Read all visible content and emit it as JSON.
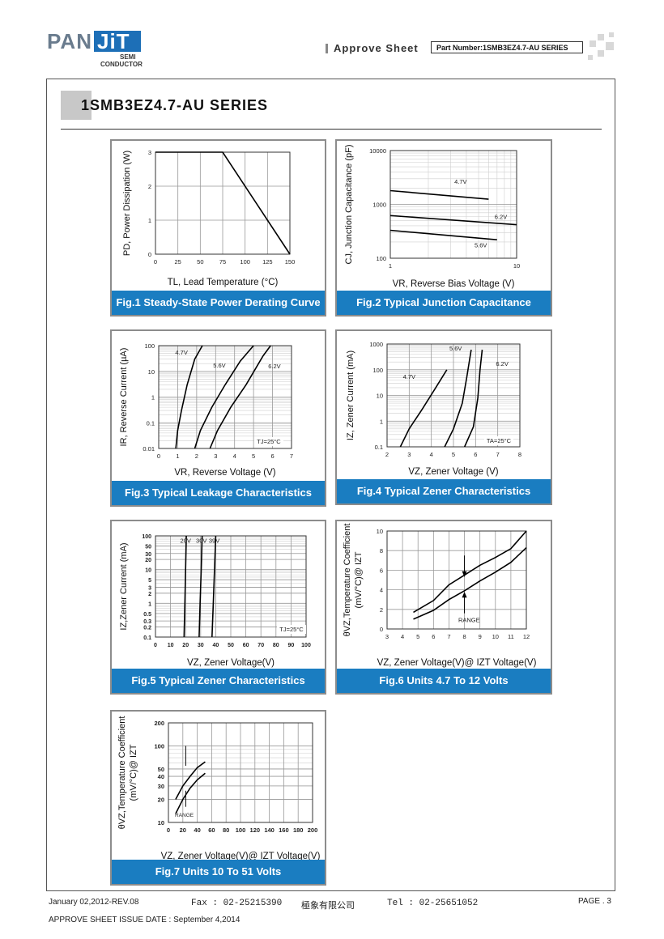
{
  "header": {
    "logo_pan": "PAN",
    "logo_jit": "JiT",
    "logo_semi": "SEMI",
    "logo_conductor": "CONDUCTOR",
    "approve_label": "Approve Sheet",
    "part_number": "Part Number:1SMB3EZ4.7-AU SERIES"
  },
  "page_title": "1SMB3EZ4.7-AU SERIES",
  "colors": {
    "caption_bg": "#1a7dc1",
    "accent": "#1d6fb7"
  },
  "figures": {
    "fig1": {
      "caption": "Fig.1 Steady-State Power Derating Curve",
      "ylabel": "PD, Power Dissipation (W)",
      "xlabel": "TL, Lead Temperature  (°C)"
    },
    "fig2": {
      "caption": "Fig.2 Typical Junction Capacitance",
      "ylabel": "CJ, Junction Capacitance (pF)",
      "xlabel": "VR, Reverse Bias Voltage (V)"
    },
    "fig3": {
      "caption": "Fig.3 Typical Leakage Characteristics",
      "ylabel": "IR, Reverse Current (µA)",
      "xlabel": "VR, Reverse Voltage (V)",
      "note": "TJ=25°C"
    },
    "fig4": {
      "caption": "Fig.4 Typical Zener Characteristics",
      "ylabel": "IZ, Zener Current (mA)",
      "xlabel": "VZ, Zener Voltage (V)",
      "note": "TA=25°C"
    },
    "fig5": {
      "caption": "Fig.5 Typical Zener Characteristics",
      "ylabel": "IZ,Zener Current (mA)",
      "xlabel": "VZ, Zener Voltage(V)",
      "note": "TJ=25°C"
    },
    "fig6": {
      "caption": "Fig.6 Units 4.7 To 12 Volts",
      "ylabel1": "θVZ,Temperature Coefficient",
      "ylabel2": "(mV/°C)@ IZT",
      "xlabel": "VZ, Zener Voltage(V)@ IZT Voltage(V)",
      "note": "RANGE"
    },
    "fig7": {
      "caption": "Fig.7 Units 10 To 51 Volts",
      "ylabel1": "θVZ,Temperature Coefficient",
      "ylabel2": "(mV/°C)@ IZT",
      "xlabel": "VZ, Zener Voltage(V)@ IZT Voltage(V)",
      "note": "RANGE"
    }
  },
  "chart_data": [
    {
      "id": "fig1",
      "type": "line",
      "xlabel": "TL, Lead Temperature (°C)",
      "ylabel": "PD, Power Dissipation (W)",
      "xlim": [
        0,
        150
      ],
      "ylim": [
        0,
        3
      ],
      "x_ticks": [
        "0",
        "25",
        "50",
        "75",
        "100",
        "125",
        "150"
      ],
      "y_ticks": [
        "0",
        "1",
        "2",
        "3"
      ],
      "series": [
        {
          "x": [
            0,
            75,
            150
          ],
          "y": [
            3,
            3,
            0
          ]
        }
      ]
    },
    {
      "id": "fig2",
      "type": "line",
      "log_x": true,
      "log_y": true,
      "xlabel": "VR, Reverse Bias Voltage (V)",
      "ylabel": "CJ, Junction Capacitance (pF)",
      "xlim": [
        1,
        10
      ],
      "ylim": [
        100,
        10000
      ],
      "x_ticks": [
        "1",
        "10"
      ],
      "y_ticks": [
        "100",
        "1000",
        "10000"
      ],
      "series": [
        {
          "name": "4.7V",
          "x": [
            1,
            6
          ],
          "y": [
            1800,
            1250
          ]
        },
        {
          "name": "6.2V",
          "x": [
            1,
            10
          ],
          "y": [
            620,
            420
          ]
        },
        {
          "name": "5.6V",
          "x": [
            1,
            7
          ],
          "y": [
            330,
            220
          ]
        }
      ]
    },
    {
      "id": "fig3",
      "type": "line",
      "log_y": true,
      "xlabel": "VR, Reverse Voltage (V)",
      "ylabel": "IR, Reverse Current (µA)",
      "xlim": [
        0,
        7
      ],
      "ylim": [
        0.01,
        100
      ],
      "x_ticks": [
        "0",
        "1",
        "2",
        "3",
        "4",
        "5",
        "6",
        "7"
      ],
      "y_ticks": [
        "0.01",
        "0.1",
        "1",
        "10",
        "100"
      ],
      "series": [
        {
          "name": "4.7V",
          "x": [
            0.9,
            1.0,
            1.2,
            1.5,
            1.9,
            2.3
          ],
          "y": [
            0.01,
            0.05,
            0.3,
            3,
            30,
            100
          ]
        },
        {
          "name": "5.6V",
          "x": [
            1.9,
            2.2,
            2.8,
            3.5,
            4.3,
            5.0
          ],
          "y": [
            0.01,
            0.05,
            0.4,
            3,
            25,
            100
          ]
        },
        {
          "name": "6.2V",
          "x": [
            2.7,
            3.1,
            3.8,
            4.6,
            5.5,
            5.9
          ],
          "y": [
            0.01,
            0.05,
            0.4,
            3,
            40,
            100
          ]
        }
      ]
    },
    {
      "id": "fig4",
      "type": "line",
      "log_y": true,
      "xlabel": "VZ, Zener Voltage (V)",
      "ylabel": "IZ, Zener Current (mA)",
      "xlim": [
        2,
        8
      ],
      "ylim": [
        0.1,
        1000
      ],
      "x_ticks": [
        "2",
        "3",
        "4",
        "5",
        "6",
        "7",
        "8"
      ],
      "y_ticks": [
        "0.1",
        "1",
        "10",
        "100",
        "1000"
      ],
      "series": [
        {
          "name": "4.7V",
          "x": [
            2.6,
            3.0,
            3.6,
            4.2,
            4.7
          ],
          "y": [
            0.1,
            0.5,
            3,
            20,
            100
          ]
        },
        {
          "name": "5.6V",
          "x": [
            4.6,
            5.0,
            5.4,
            5.6,
            5.8
          ],
          "y": [
            0.1,
            0.5,
            5,
            50,
            600
          ]
        },
        {
          "name": "6.2V",
          "x": [
            5.5,
            5.9,
            6.1,
            6.2,
            6.3
          ],
          "y": [
            0.1,
            0.6,
            8,
            100,
            600
          ]
        }
      ]
    },
    {
      "id": "fig5",
      "type": "line",
      "log_y": true,
      "xlabel": "VZ, Zener Voltage(V)",
      "ylabel": "IZ,Zener Current (mA)",
      "xlim": [
        0,
        100
      ],
      "ylim": [
        0.1,
        100
      ],
      "x_ticks": [
        "0",
        "10",
        "20",
        "30",
        "40",
        "50",
        "60",
        "70",
        "80",
        "90",
        "100"
      ],
      "y_ticks": [
        "0.1",
        "0.2",
        "0.3",
        "0.5",
        "1",
        "2",
        "3",
        "5",
        "10",
        "20",
        "30",
        "50",
        "100"
      ],
      "series": [
        {
          "name": "20V",
          "x": [
            19.0,
            19.5,
            20.0,
            20.5
          ],
          "y": [
            0.1,
            1,
            10,
            100
          ]
        },
        {
          "name": "30V",
          "x": [
            29.0,
            29.6,
            30.4,
            31.0
          ],
          "y": [
            0.1,
            1,
            10,
            100
          ]
        },
        {
          "name": "39V",
          "x": [
            37.5,
            38.4,
            39.2,
            40.0
          ],
          "y": [
            0.1,
            1,
            10,
            100
          ]
        }
      ]
    },
    {
      "id": "fig6",
      "type": "line",
      "xlabel": "VZ, Zener Voltage(V)@ IZT Voltage(V)",
      "ylabel": "θVZ,Temperature Coefficient (mV/°C)@ IZT",
      "xlim": [
        3,
        12
      ],
      "ylim": [
        0,
        10
      ],
      "x_ticks": [
        "3",
        "4",
        "5",
        "6",
        "7",
        "8",
        "9",
        "10",
        "11",
        "12"
      ],
      "y_ticks": [
        "0",
        "2",
        "4",
        "6",
        "8",
        "10"
      ],
      "series": [
        {
          "name": "upper",
          "x": [
            4.7,
            6,
            7,
            8,
            9,
            10,
            11,
            12
          ],
          "y": [
            1.7,
            2.9,
            4.5,
            5.5,
            6.5,
            7.3,
            8.2,
            10.0
          ]
        },
        {
          "name": "lower",
          "x": [
            4.7,
            6,
            7,
            8,
            9,
            10,
            11,
            12
          ],
          "y": [
            1.0,
            1.9,
            3.0,
            3.9,
            4.9,
            5.8,
            6.8,
            8.3
          ]
        }
      ]
    },
    {
      "id": "fig7",
      "type": "line",
      "log_y": true,
      "xlabel": "VZ, Zener Voltage(V)@ IZT Voltage(V)",
      "ylabel": "θVZ,Temperature Coefficient (mV/°C)@ IZT",
      "xlim": [
        0,
        200
      ],
      "ylim": [
        10,
        200
      ],
      "x_ticks": [
        "0",
        "20",
        "40",
        "60",
        "80",
        "100",
        "120",
        "140",
        "160",
        "180",
        "200"
      ],
      "y_ticks": [
        "10",
        "20",
        "30",
        "40",
        "50",
        "100",
        "200"
      ],
      "series": [
        {
          "name": "upper",
          "x": [
            10,
            20,
            30,
            40,
            51
          ],
          "y": [
            20,
            30,
            40,
            52,
            62
          ]
        },
        {
          "name": "lower",
          "x": [
            10,
            20,
            30,
            40,
            51
          ],
          "y": [
            13,
            20,
            28,
            36,
            44
          ]
        }
      ]
    }
  ],
  "footer": {
    "date_rev": "January 02,2012-REV.08",
    "fax": "Fax : 02-25215390",
    "company": "極象有限公司",
    "tel": "Tel : 02-25651052",
    "page": "PAGE . 3",
    "issue": "APPROVE SHEET ISSUE DATE : September 4,2014"
  }
}
